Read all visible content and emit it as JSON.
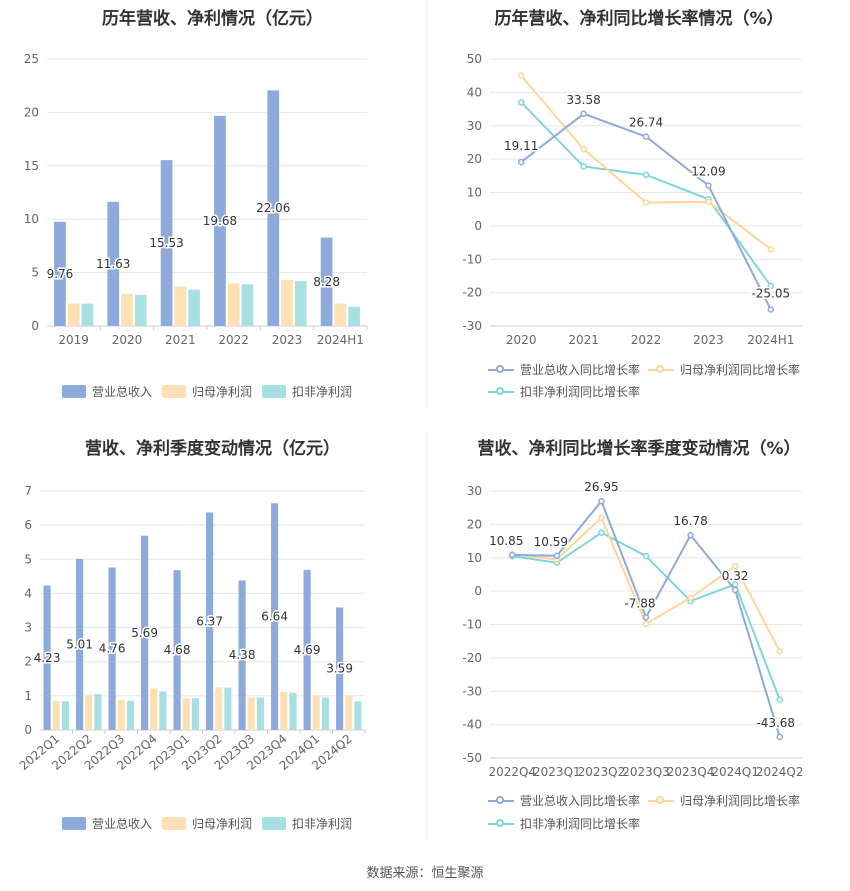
{
  "source_text": "数据来源：恒生聚源",
  "colors": {
    "revenue": "#8eaadb",
    "net_profit": "#fde0b4",
    "deducted_profit": "#a8e0e2",
    "revenue_line": "#8eaadb",
    "net_profit_line": "#fdd59a",
    "deducted_profit_line": "#7fd6d8"
  },
  "chart_data": [
    {
      "id": "annual_bar",
      "type": "bar",
      "title": "历年营收、净利情况（亿元）",
      "categories": [
        "2019",
        "2020",
        "2021",
        "2022",
        "2023",
        "2024H1"
      ],
      "ylim": [
        0,
        25
      ],
      "yticks": [
        0,
        5,
        10,
        15,
        20,
        25
      ],
      "series": [
        {
          "name": "营业总收入",
          "values": [
            9.76,
            11.63,
            15.53,
            19.68,
            22.06,
            8.28
          ],
          "labels": [
            "9.76",
            "11.63",
            "15.53",
            "19.68",
            "22.06",
            "8.28"
          ]
        },
        {
          "name": "归母净利润",
          "values": [
            2.1,
            3.0,
            3.7,
            4.0,
            4.3,
            2.1
          ]
        },
        {
          "name": "扣非净利润",
          "values": [
            2.1,
            2.9,
            3.4,
            3.9,
            4.2,
            1.8
          ]
        }
      ],
      "legend_position": "bottom",
      "grid": true
    },
    {
      "id": "annual_line",
      "type": "line",
      "title": "历年营收、净利同比增长率情况（%）",
      "categories": [
        "2020",
        "2021",
        "2022",
        "2023",
        "2024H1"
      ],
      "ylim": [
        -30,
        50
      ],
      "yticks": [
        -30,
        -20,
        -10,
        0,
        10,
        20,
        30,
        40,
        50
      ],
      "series": [
        {
          "name": "营业总收入同比增长率",
          "values": [
            19.11,
            33.58,
            26.74,
            12.09,
            -25.05
          ],
          "labels": [
            "19.11",
            "33.58",
            "26.74",
            "12.09",
            "-25.05"
          ]
        },
        {
          "name": "归母净利润同比增长率",
          "values": [
            45.0,
            23.0,
            7.0,
            7.2,
            -7.0
          ]
        },
        {
          "name": "扣非净利润同比增长率",
          "values": [
            37.0,
            17.8,
            15.3,
            8.0,
            -18.0
          ]
        }
      ],
      "legend_position": "bottom",
      "grid": true
    },
    {
      "id": "quarter_bar",
      "type": "bar",
      "title": "营收、净利季度变动情况（亿元）",
      "categories": [
        "2022Q1",
        "2022Q2",
        "2022Q3",
        "2022Q4",
        "2023Q1",
        "2023Q2",
        "2023Q3",
        "2023Q4",
        "2024Q1",
        "2024Q2"
      ],
      "ylim": [
        0,
        7
      ],
      "yticks": [
        0,
        1,
        2,
        3,
        4,
        5,
        6,
        7
      ],
      "series": [
        {
          "name": "营业总收入",
          "values": [
            4.23,
            5.01,
            4.76,
            5.69,
            4.68,
            6.37,
            4.38,
            6.64,
            4.69,
            3.59
          ],
          "labels": [
            "4.23",
            "5.01",
            "4.76",
            "5.69",
            "4.68",
            "6.37",
            "4.38",
            "6.64",
            "4.69",
            "3.59"
          ]
        },
        {
          "name": "归母净利润",
          "values": [
            0.85,
            1.02,
            0.88,
            1.22,
            0.93,
            1.25,
            0.95,
            1.12,
            1.02,
            1.02
          ]
        },
        {
          "name": "扣非净利润",
          "values": [
            0.84,
            1.05,
            0.86,
            1.13,
            0.93,
            1.24,
            0.95,
            1.09,
            0.95,
            0.84
          ]
        }
      ],
      "legend_position": "bottom",
      "grid": true
    },
    {
      "id": "quarter_line",
      "type": "line",
      "title": "营收、净利同比增长率季度变动情况（%）",
      "categories": [
        "2022Q4",
        "2023Q1",
        "2023Q2",
        "2023Q3",
        "2023Q4",
        "2024Q1",
        "2024Q2"
      ],
      "ylim": [
        -50,
        30
      ],
      "yticks": [
        -50,
        -40,
        -30,
        -20,
        -10,
        0,
        10,
        20,
        30
      ],
      "series": [
        {
          "name": "营业总收入同比增长率",
          "values": [
            10.85,
            10.59,
            26.95,
            -7.88,
            16.78,
            0.32,
            -43.68
          ],
          "labels": [
            "10.85",
            "10.59",
            "26.95",
            "-7.88",
            "16.78",
            "0.32",
            "-43.68"
          ]
        },
        {
          "name": "归母净利润同比增长率",
          "values": [
            11.0,
            9.5,
            22.0,
            -9.8,
            -2.0,
            7.5,
            -18.0
          ]
        },
        {
          "name": "扣非净利润同比增长率",
          "values": [
            10.5,
            8.5,
            17.5,
            10.5,
            -3.0,
            2.0,
            -32.5
          ]
        }
      ],
      "legend_position": "bottom",
      "grid": true
    }
  ]
}
